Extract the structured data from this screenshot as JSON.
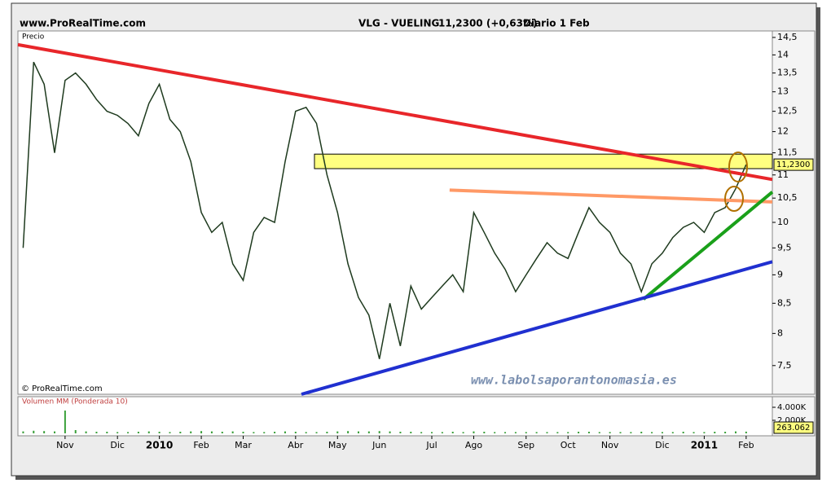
{
  "header": {
    "site": "www.ProRealTime.com",
    "instrument": "VLG - VUELING",
    "quote": "11,2300 (+0,63%)",
    "period": "Diario  1 Feb"
  },
  "chart_data": {
    "type": "line",
    "y_label": "Precio",
    "copyright": "© ProRealTime.com",
    "watermark": "www.labolsaporantonomasia.es",
    "log_scale": true,
    "color": "#1e3a1e",
    "categories": [
      null,
      null,
      null,
      null,
      "Nov",
      null,
      null,
      null,
      null,
      "Dic",
      null,
      null,
      null,
      "2010",
      null,
      null,
      null,
      "Feb",
      null,
      null,
      null,
      "Mar",
      null,
      null,
      null,
      null,
      "Abr",
      null,
      null,
      null,
      "May",
      null,
      null,
      null,
      "Jun",
      null,
      null,
      null,
      null,
      "Jul",
      null,
      null,
      null,
      "Ago",
      null,
      null,
      null,
      null,
      "Sep",
      null,
      null,
      null,
      "Oct",
      null,
      null,
      null,
      "Nov",
      null,
      null,
      null,
      null,
      "Dic",
      null,
      null,
      null,
      "2011",
      null,
      null,
      null,
      "Feb",
      null,
      null
    ],
    "values": [
      9.5,
      13.8,
      13.2,
      11.5,
      13.3,
      13.5,
      13.2,
      12.8,
      12.5,
      12.4,
      12.2,
      11.9,
      12.7,
      13.2,
      12.3,
      12.0,
      11.3,
      10.2,
      9.8,
      10.0,
      9.2,
      8.9,
      9.8,
      10.1,
      10.0,
      11.3,
      12.5,
      12.6,
      12.2,
      11.0,
      10.2,
      9.2,
      8.6,
      8.3,
      7.6,
      8.5,
      7.8,
      8.8,
      8.4,
      8.6,
      8.8,
      9.0,
      8.7,
      10.2,
      9.8,
      9.4,
      9.1,
      8.7,
      9.0,
      9.3,
      9.6,
      9.4,
      9.3,
      9.8,
      10.3,
      10.0,
      9.8,
      9.4,
      9.2,
      8.7,
      9.2,
      9.4,
      9.7,
      9.9,
      10.0,
      9.8,
      10.2,
      10.3,
      10.7,
      11.23,
      null,
      null
    ],
    "last_price_label": "11,2300",
    "ylim": [
      7.08,
      14.69
    ],
    "yticks": [
      {
        "value": 14.5,
        "label": "14,5"
      },
      14,
      {
        "value": 13.5,
        "label": "13,5"
      },
      13,
      {
        "value": 12.5,
        "label": "12,5"
      },
      12,
      {
        "value": 11.5,
        "label": "11,5"
      },
      11,
      {
        "value": 10.5,
        "label": "10,5"
      },
      10,
      {
        "value": 9.5,
        "label": "9,5"
      },
      9,
      {
        "value": 8.5,
        "label": "8,5"
      },
      8,
      {
        "value": 7.5,
        "label": "7,5"
      }
    ],
    "trendlines": [
      {
        "color": "#e8262a",
        "x": [
          -0.5,
          71.5
        ],
        "y": [
          14.29,
          10.9
        ]
      },
      {
        "color": "#ff9966",
        "x": [
          40.7,
          71.5
        ],
        "y": [
          10.67,
          10.42
        ]
      },
      {
        "color": "#1aa01a",
        "x": [
          59.2,
          71.5
        ],
        "y": [
          8.57,
          10.63
        ]
      },
      {
        "color": "#2030d0",
        "x": [
          26.56,
          71.5
        ],
        "y": [
          7.08,
          9.24
        ]
      }
    ],
    "band": {
      "color": "#ffff80",
      "x": [
        27.8,
        71.5
      ],
      "y": [
        11.14,
        11.47
      ]
    },
    "volume": {
      "label": "Volumen MM (Ponderada 10)",
      "color": "#3aa03a",
      "ylim": [
        -375000,
        5625000
      ],
      "yticks": [
        {
          "value": 4000000,
          "label": "4.000K"
        },
        {
          "value": 2000000,
          "label": "2.000K"
        }
      ],
      "last_label": "263.062",
      "values": [
        300000,
        400000,
        350000,
        300000,
        3500000,
        500000,
        300000,
        250000,
        250000,
        200000,
        200000,
        250000,
        300000,
        250000,
        200000,
        250000,
        300000,
        350000,
        300000,
        250000,
        300000,
        250000,
        200000,
        200000,
        250000,
        300000,
        250000,
        200000,
        200000,
        250000,
        300000,
        350000,
        300000,
        300000,
        350000,
        300000,
        250000,
        250000,
        200000,
        200000,
        200000,
        250000,
        200000,
        300000,
        250000,
        200000,
        200000,
        200000,
        200000,
        200000,
        200000,
        200000,
        200000,
        250000,
        250000,
        200000,
        200000,
        200000,
        200000,
        250000,
        200000,
        200000,
        200000,
        250000,
        200000,
        200000,
        250000,
        250000,
        300000,
        263062,
        null,
        null
      ]
    }
  }
}
